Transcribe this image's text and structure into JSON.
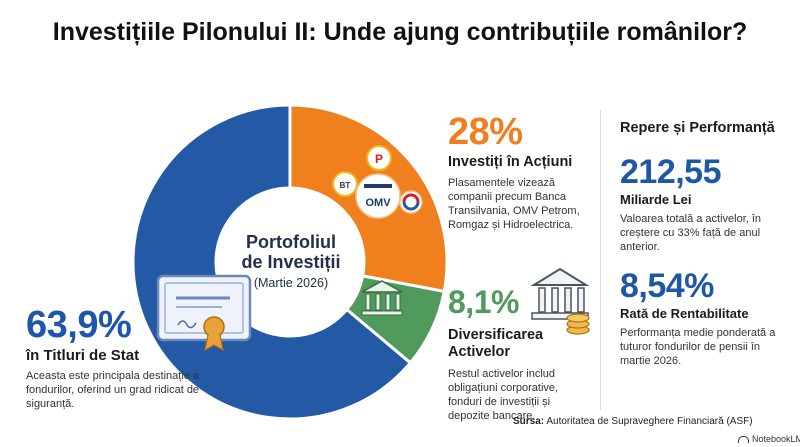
{
  "title": "Investițiile Pilonului II: Unde ajung contribuțiile românilor?",
  "center": {
    "line1": "Portofoliul",
    "line2": "de Investiții",
    "line3": "(Martie 2026)"
  },
  "chart_data": {
    "type": "pie",
    "title": "Portofoliul de Investiții (Martie 2026)",
    "slices": [
      {
        "label": "în Titluri de Stat",
        "value": 63.9,
        "color": "#2459a6"
      },
      {
        "label": "Investiți în Acțiuni",
        "value": 28,
        "color": "#f07f1e"
      },
      {
        "label": "Diversificarea Activelor",
        "value": 8.1,
        "color": "#4f9a5c"
      }
    ]
  },
  "gov": {
    "pct": "63,9%",
    "heading": "în Titluri de Stat",
    "desc": "Aceasta este principala destinație a fondurilor, oferind un grad ridicat de siguranță."
  },
  "equities": {
    "pct": "28%",
    "heading": "Investiți în Acțiuni",
    "desc": "Plasamentele vizează companii precum Banca Transilvania, OMV Petrom, Romgaz și Hidroelectrica.",
    "logos": [
      "BT",
      "P",
      "OMV"
    ]
  },
  "diversification": {
    "pct": "8,1%",
    "heading_line1": "Diversificarea",
    "heading_line2": "Activelor",
    "desc": "Restul activelor includ obligațiuni corporative, fonduri de investiții și depozite bancare."
  },
  "panel": {
    "title": "Repere și Performanță",
    "assets_value": "212,55",
    "assets_unit": "Miliarde Lei",
    "assets_desc": "Valoarea totală a activelor, în creștere cu 33% față de anul anterior.",
    "return_value": "8,54%",
    "return_label": "Rată de Rentabilitate",
    "return_desc": "Performanța medie ponderată a tuturor fondurilor de pensii în martie 2026."
  },
  "source": {
    "label": "Sursa:",
    "text": "Autoritatea de Supraveghere Financiară (ASF)"
  },
  "brand": "NotebookLM"
}
